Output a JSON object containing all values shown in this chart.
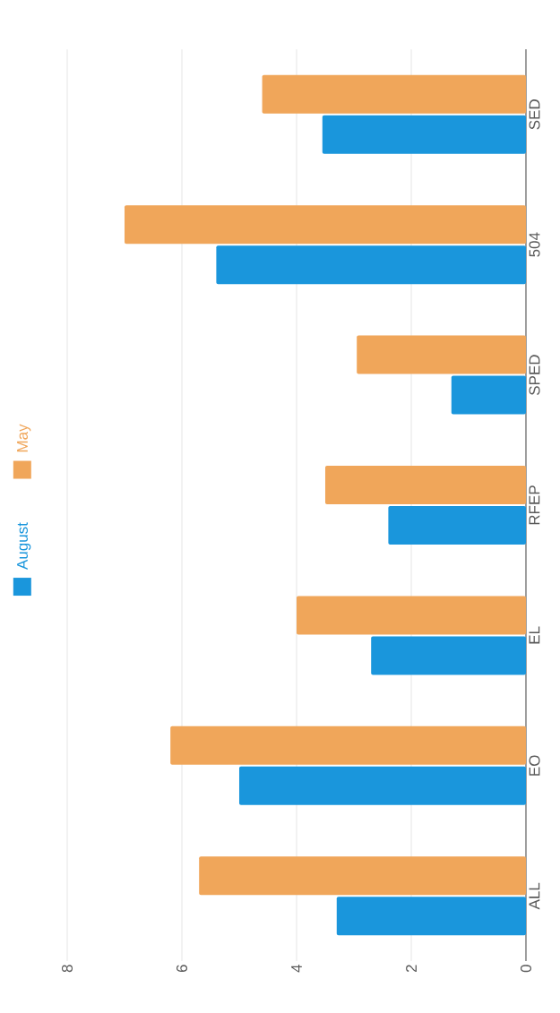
{
  "chart_data": {
    "type": "bar",
    "orientation": "horizontal",
    "categories": [
      "SED",
      "504",
      "SPED",
      "RFEP",
      "EL",
      "EO",
      "ALL"
    ],
    "series": [
      {
        "name": "August",
        "color": "#1a96dc",
        "values": [
          3.55,
          5.4,
          1.3,
          2.4,
          2.7,
          5.0,
          3.3
        ]
      },
      {
        "name": "May",
        "color": "#f0a65a",
        "values": [
          4.6,
          7.0,
          2.95,
          3.5,
          4.0,
          6.2,
          5.7
        ]
      }
    ],
    "xlim": [
      8,
      0
    ],
    "xticks": [
      8,
      6,
      4,
      2,
      0
    ],
    "grid": "x",
    "legend": "left"
  }
}
